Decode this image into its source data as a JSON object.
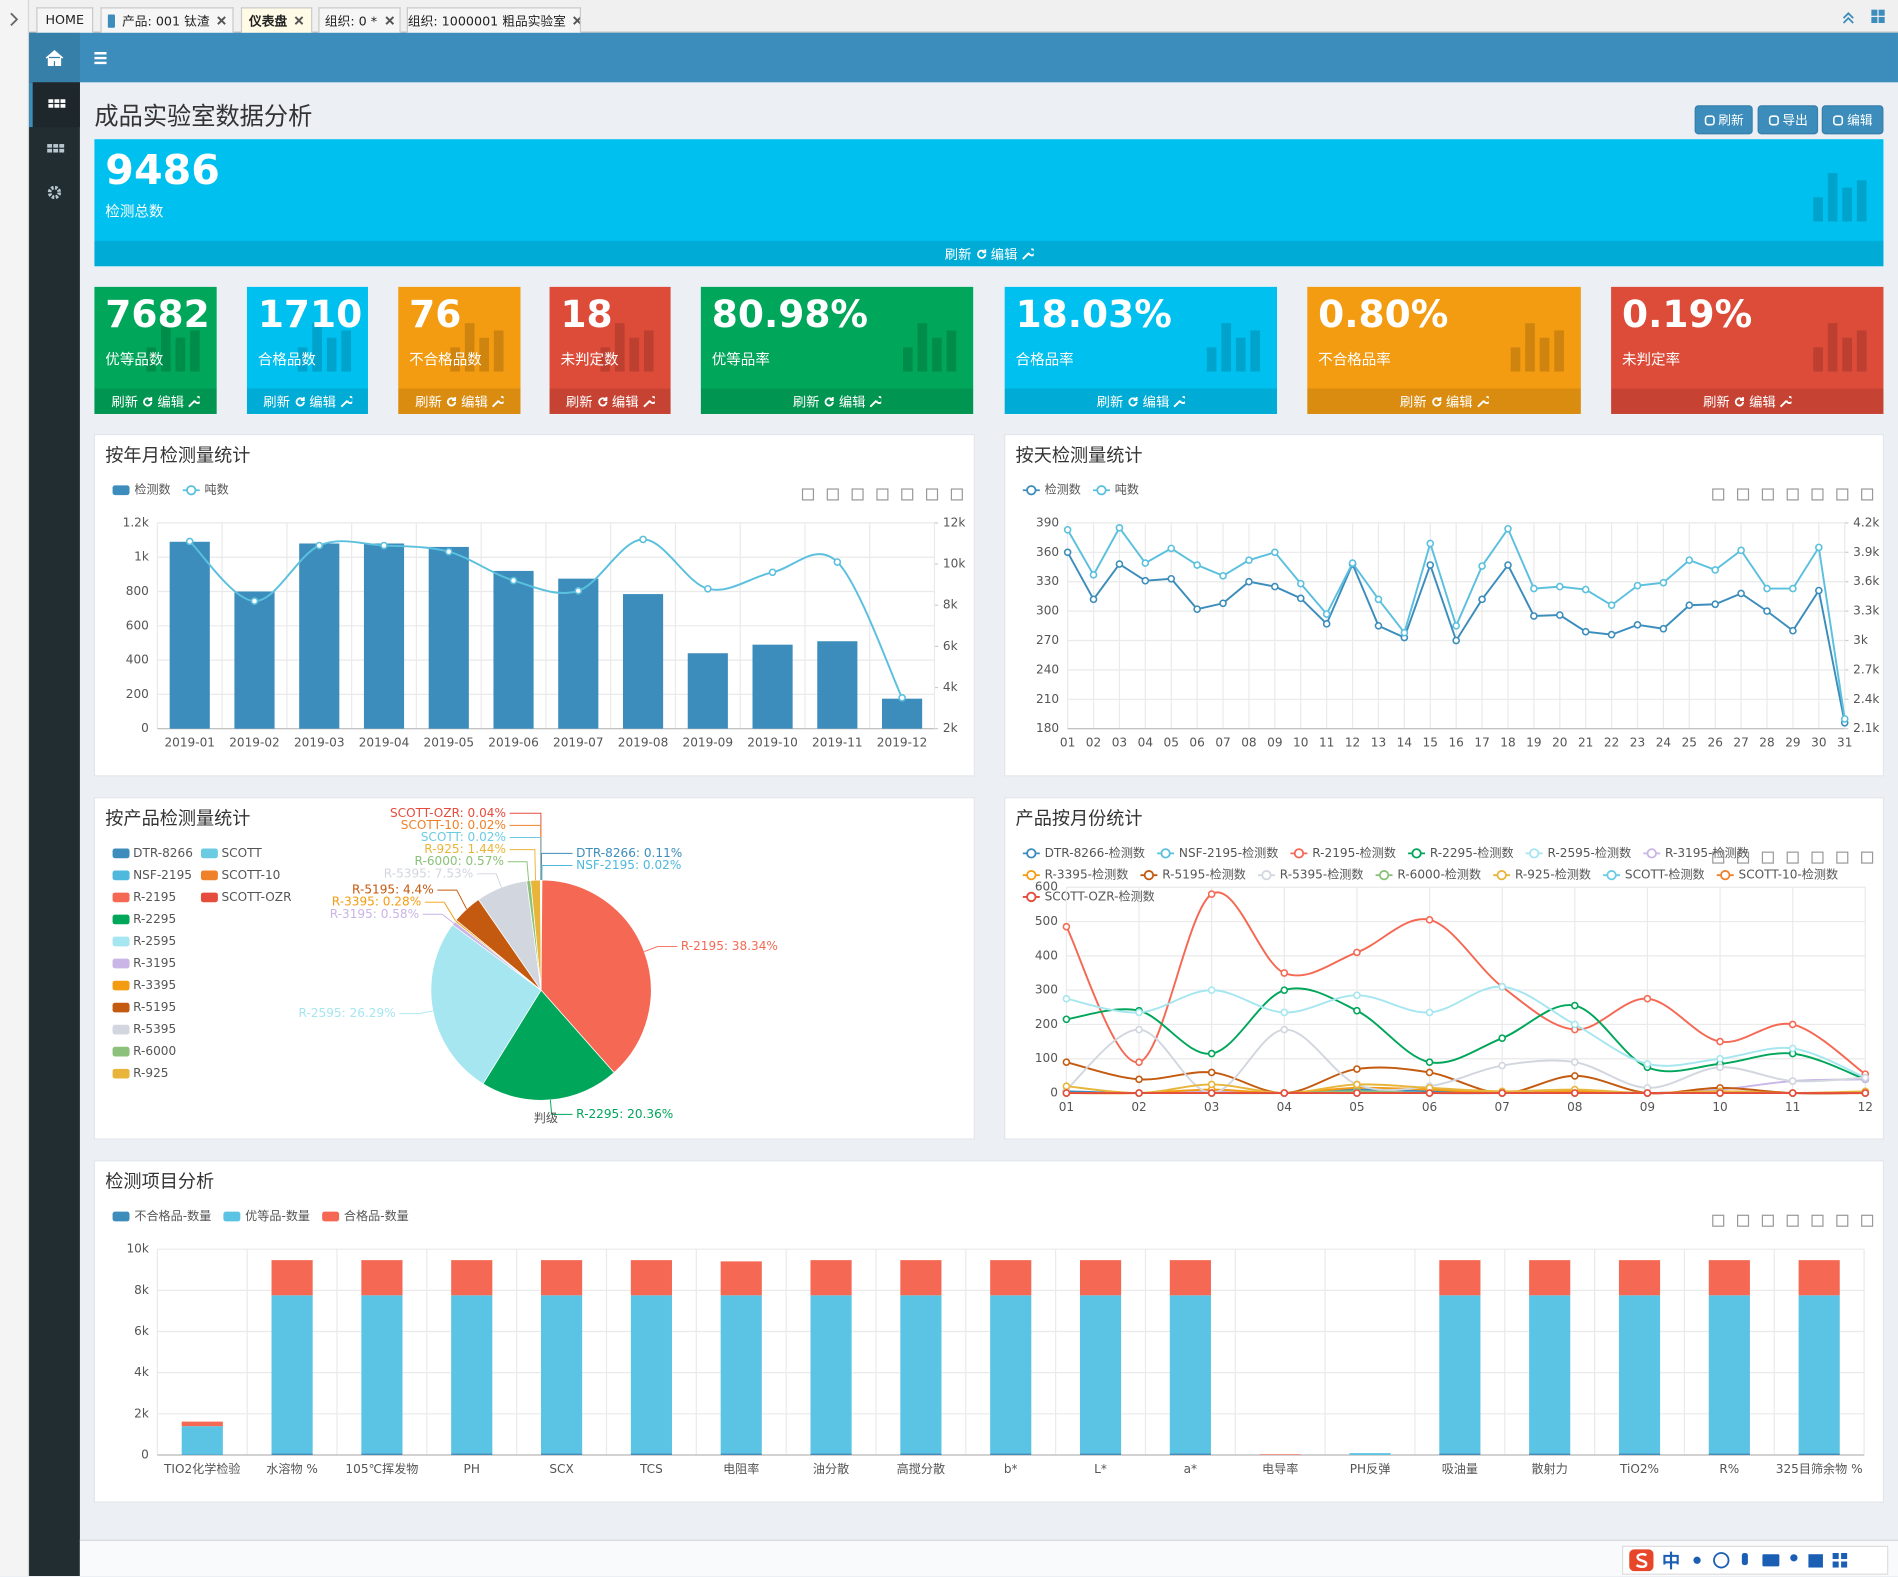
{
  "tabs": [
    "HOME",
    "产品: 001 钛渣",
    "仪表盘",
    "组织: 0 *",
    "组织: 1000001 粗品实验室"
  ],
  "title": "成品实验室数据分析",
  "buttons": [
    "刷新",
    "导出",
    "编辑"
  ],
  "kpi_actions": [
    "刷新",
    "编辑"
  ],
  "kpis": [
    {
      "value": "9486",
      "label": "检测总数",
      "color": "#00c0ef"
    },
    {
      "value": "7682",
      "label": "优等品数",
      "color": "#00a65a"
    },
    {
      "value": "1710",
      "label": "合格品数",
      "color": "#00c0ef"
    },
    {
      "value": "76",
      "label": "不合格品数",
      "color": "#f39c12"
    },
    {
      "value": "18",
      "label": "未判定数",
      "color": "#dd4b39"
    },
    {
      "value": "80.98%",
      "label": "优等品率",
      "color": "#00a65a"
    },
    {
      "value": "18.03%",
      "label": "合格品率",
      "color": "#00c0ef"
    },
    {
      "value": "0.80%",
      "label": "不合格品率",
      "color": "#f39c12"
    },
    {
      "value": "0.19%",
      "label": "未判定率",
      "color": "#dd4b39"
    }
  ],
  "ime": "中",
  "chart_data": [
    {
      "type": "bar",
      "title": "按年月检测量统计",
      "grid": true,
      "categories": [
        "2019-01",
        "2019-02",
        "2019-03",
        "2019-04",
        "2019-05",
        "2019-06",
        "2019-07",
        "2019-08",
        "2019-09",
        "2019-10",
        "2019-11",
        "2019-12"
      ],
      "series": [
        {
          "name": "检测数",
          "type": "bar",
          "color": "#3c8dbc",
          "values": [
            1090,
            800,
            1080,
            1080,
            1060,
            920,
            875,
            785,
            440,
            490,
            510,
            175
          ]
        },
        {
          "name": "吨数",
          "type": "line",
          "axis": "y2",
          "smooth": true,
          "color": "#5bc0de",
          "values": [
            11100,
            8200,
            10900,
            10900,
            10600,
            9200,
            8700,
            11200,
            8800,
            9600,
            10100,
            3500
          ]
        }
      ],
      "ylim": [
        0,
        1200
      ],
      "yticks": [
        0,
        200,
        400,
        600,
        800,
        {
          "value": 1000,
          "label": "1k"
        },
        {
          "value": 1200,
          "label": "1.2k"
        }
      ],
      "y2lim": [
        2000,
        12000
      ],
      "y2ticks": [
        {
          "value": 2000,
          "label": "2k"
        },
        {
          "value": 4000,
          "label": "4k"
        },
        {
          "value": 6000,
          "label": "6k"
        },
        {
          "value": 8000,
          "label": "8k"
        },
        {
          "value": 10000,
          "label": "10k"
        },
        {
          "value": 12000,
          "label": "12k"
        }
      ]
    },
    {
      "type": "line",
      "title": "按天检测量统计",
      "grid": true,
      "categories": [
        "01",
        "02",
        "03",
        "04",
        "05",
        "06",
        "07",
        "08",
        "09",
        "10",
        "11",
        "12",
        "13",
        "14",
        "15",
        "16",
        "17",
        "18",
        "19",
        "20",
        "21",
        "22",
        "23",
        "24",
        "25",
        "26",
        "27",
        "28",
        "29",
        "30",
        "31"
      ],
      "series": [
        {
          "name": "检测数",
          "color": "#3c8dbc",
          "smooth": false,
          "values": [
            360,
            312,
            348,
            331,
            333,
            302,
            308,
            330,
            325,
            313,
            287,
            348,
            285,
            273,
            347,
            270,
            312,
            347,
            295,
            296,
            279,
            276,
            286,
            282,
            306,
            307,
            318,
            300,
            280,
            321,
            186
          ]
        },
        {
          "name": "吨数",
          "axis": "y2",
          "color": "#5bc0de",
          "smooth": false,
          "values": [
            4130,
            3670,
            4150,
            3790,
            3940,
            3770,
            3660,
            3820,
            3900,
            3580,
            3270,
            3790,
            3420,
            3080,
            3990,
            3150,
            3760,
            4140,
            3530,
            3550,
            3520,
            3360,
            3560,
            3590,
            3820,
            3720,
            3920,
            3530,
            3530,
            3950,
            2200
          ]
        }
      ],
      "ylim": [
        180,
        390
      ],
      "yticks": [
        180,
        210,
        240,
        270,
        300,
        330,
        360,
        390
      ],
      "y2lim": [
        2100,
        4200
      ],
      "y2ticks": [
        {
          "value": 2100,
          "label": "2.1k"
        },
        {
          "value": 2400,
          "label": "2.4k"
        },
        {
          "value": 2700,
          "label": "2.7k"
        },
        {
          "value": 3000,
          "label": "3k"
        },
        {
          "value": 3300,
          "label": "3.3k"
        },
        {
          "value": 3600,
          "label": "3.6k"
        },
        {
          "value": 3900,
          "label": "3.9k"
        },
        {
          "value": 4200,
          "label": "4.2k"
        }
      ]
    },
    {
      "type": "pie",
      "title": "按产品检测量统计",
      "annotation": "判级",
      "categories": [
        "DTR-8266",
        "NSF-2195",
        "R-2195",
        "R-2295",
        "R-2595",
        "R-3195",
        "R-3395",
        "R-5195",
        "R-5395",
        "R-6000",
        "R-925",
        "SCOTT",
        "SCOTT-10",
        "SCOTT-OZR"
      ],
      "values": [
        0.11,
        0.02,
        38.34,
        20.36,
        26.29,
        0.58,
        0.28,
        4.4,
        7.53,
        0.57,
        1.44,
        0.02,
        0.02,
        0.04
      ],
      "value_labels": [
        "DTR-8266: 0.11%",
        "NSF-2195: 0.02%",
        "R-2195: 38.34%",
        "R-2295: 20.36%",
        "R-2595: 26.29%",
        "R-3195: 0.58%",
        "R-3395: 0.28%",
        "R-5195: 4.4%",
        "R-5395: 7.53%",
        "R-6000: 0.57%",
        "R-925: 1.44%",
        "SCOTT: 0.02%",
        "SCOTT-10: 0.02%",
        "SCOTT-OZR: 0.04%"
      ],
      "colors": [
        "#3c8dbc",
        "#4fb8dd",
        "#f56954",
        "#00a65a",
        "#a6e6f0",
        "#c9b5e6",
        "#f39c12",
        "#c35a0f",
        "#d2d6de",
        "#8bc17a",
        "#e8b53a",
        "#6bcbe3",
        "#f0812b",
        "#e64c3c"
      ]
    },
    {
      "type": "line",
      "title": "产品按月份统计",
      "grid": true,
      "categories": [
        "01",
        "02",
        "03",
        "04",
        "05",
        "06",
        "07",
        "08",
        "09",
        "10",
        "11",
        "12"
      ],
      "series": [
        {
          "name": "DTR-8266-检测数",
          "color": "#3c8dbc",
          "smooth": true,
          "values": [
            5,
            0,
            5,
            0,
            10,
            5,
            0,
            5,
            0,
            5,
            0,
            0
          ]
        },
        {
          "name": "NSF-2195-检测数",
          "color": "#5bc0de",
          "smooth": true,
          "values": [
            0,
            0,
            0,
            0,
            0,
            0,
            0,
            0,
            0,
            0,
            0,
            0
          ]
        },
        {
          "name": "R-2195-检测数",
          "color": "#f56954",
          "smooth": true,
          "values": [
            485,
            90,
            580,
            350,
            410,
            505,
            310,
            185,
            275,
            150,
            200,
            55
          ]
        },
        {
          "name": "R-2295-检测数",
          "color": "#00a65a",
          "smooth": true,
          "values": [
            215,
            240,
            115,
            300,
            240,
            90,
            160,
            255,
            75,
            85,
            115,
            40
          ]
        },
        {
          "name": "R-2595-检测数",
          "color": "#a6e6f0",
          "smooth": true,
          "values": [
            275,
            235,
            300,
            235,
            285,
            235,
            310,
            200,
            85,
            100,
            130,
            45
          ]
        },
        {
          "name": "R-3195-检测数",
          "color": "#c9b5e6",
          "smooth": true,
          "values": [
            0,
            0,
            5,
            0,
            5,
            0,
            0,
            5,
            0,
            10,
            35,
            40
          ]
        },
        {
          "name": "R-3395-检测数",
          "color": "#f39c12",
          "smooth": true,
          "values": [
            0,
            0,
            10,
            0,
            15,
            10,
            0,
            5,
            0,
            5,
            0,
            0
          ]
        },
        {
          "name": "R-5195-检测数",
          "color": "#c35a0f",
          "smooth": true,
          "values": [
            90,
            40,
            60,
            0,
            70,
            60,
            0,
            50,
            0,
            15,
            0,
            0
          ]
        },
        {
          "name": "R-5395-检测数",
          "color": "#d2d6de",
          "smooth": true,
          "values": [
            10,
            185,
            0,
            185,
            25,
            20,
            80,
            90,
            15,
            75,
            35,
            45
          ]
        },
        {
          "name": "R-6000-检测数",
          "color": "#8bc17a",
          "smooth": true,
          "values": [
            0,
            0,
            0,
            0,
            5,
            0,
            0,
            0,
            0,
            0,
            0,
            0
          ]
        },
        {
          "name": "R-925-检测数",
          "color": "#e8b53a",
          "smooth": true,
          "values": [
            20,
            0,
            25,
            0,
            25,
            15,
            5,
            10,
            0,
            5,
            0,
            5
          ]
        },
        {
          "name": "SCOTT-检测数",
          "color": "#6bcbe3",
          "smooth": true,
          "values": [
            0,
            0,
            0,
            0,
            0,
            0,
            0,
            0,
            0,
            0,
            0,
            0
          ]
        },
        {
          "name": "SCOTT-10-检测数",
          "color": "#f0812b",
          "smooth": true,
          "values": [
            0,
            0,
            0,
            0,
            0,
            0,
            0,
            0,
            0,
            0,
            0,
            0
          ]
        },
        {
          "name": "SCOTT-OZR-检测数",
          "color": "#e64c3c",
          "smooth": true,
          "values": [
            0,
            0,
            0,
            0,
            0,
            0,
            0,
            0,
            0,
            0,
            0,
            0
          ]
        }
      ],
      "ylim": [
        0,
        600
      ],
      "yticks": [
        0,
        100,
        200,
        300,
        400,
        500,
        600
      ]
    },
    {
      "type": "bar",
      "stacked": true,
      "title": "检测项目分析",
      "grid": true,
      "categories": [
        "TIO2化学检验",
        "水溶物 %",
        "105℃挥发物",
        "PH",
        "SCX",
        "TCS",
        "电阻率",
        "油分散",
        "高搅分散",
        "b*",
        "L*",
        "a*",
        "电导率",
        "PH反弹",
        "吸油量",
        "散射力",
        "TiO2%",
        "R%",
        "325目筛余物 %"
      ],
      "series": [
        {
          "name": "不合格品-数量",
          "color": "#3c8dbc",
          "values": [
            20,
            76,
            76,
            76,
            76,
            76,
            76,
            76,
            76,
            76,
            76,
            76,
            0,
            0,
            76,
            76,
            76,
            76,
            76
          ]
        },
        {
          "name": "优等品-数量",
          "color": "#5bc4e4",
          "values": [
            1380,
            7682,
            7682,
            7682,
            7682,
            7682,
            7682,
            7682,
            7682,
            7682,
            7682,
            7682,
            0,
            90,
            7682,
            7682,
            7682,
            7682,
            7682
          ]
        },
        {
          "name": "合格品-数量",
          "color": "#f56954",
          "values": [
            220,
            1710,
            1710,
            1710,
            1710,
            1710,
            1650,
            1710,
            1710,
            1710,
            1710,
            1710,
            30,
            0,
            1710,
            1710,
            1710,
            1710,
            1710
          ]
        }
      ],
      "ylim": [
        0,
        10000
      ],
      "yticks": [
        0,
        {
          "value": 2000,
          "label": "2k"
        },
        {
          "value": 4000,
          "label": "4k"
        },
        {
          "value": 6000,
          "label": "6k"
        },
        {
          "value": 8000,
          "label": "8k"
        },
        {
          "value": 10000,
          "label": "10k"
        }
      ]
    }
  ]
}
